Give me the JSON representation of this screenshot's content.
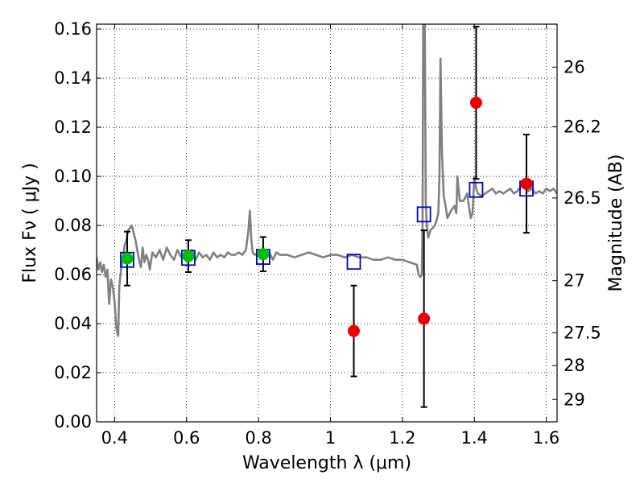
{
  "chart_data": {
    "type": "scatter",
    "title": "",
    "xlabel": "Wavelength  λ (μm)",
    "ylabel": "Flux  Fν  ( μJy )",
    "y2label": "Magnitude (AB)",
    "xlim": [
      0.35,
      1.63
    ],
    "ylim": [
      0.0,
      0.162
    ],
    "x_ticks": [
      0.4,
      0.6,
      0.8,
      1.0,
      1.2,
      1.4,
      1.6
    ],
    "x_tick_labels": [
      "0.4",
      "0.6",
      "0.8",
      "1",
      "1.2",
      "1.4",
      "1.6"
    ],
    "y_ticks": [
      0.0,
      0.02,
      0.04,
      0.06,
      0.08,
      0.1,
      0.12,
      0.14,
      0.16
    ],
    "y_tick_labels": [
      "0.00",
      "0.02",
      "0.04",
      "0.06",
      "0.08",
      "0.10",
      "0.12",
      "0.14",
      "0.16"
    ],
    "y2_ticks": [
      {
        "label": "26",
        "flux": 0.1445
      },
      {
        "label": "26.2",
        "flux": 0.1202
      },
      {
        "label": "26.5",
        "flux": 0.0912
      },
      {
        "label": "27",
        "flux": 0.0575
      },
      {
        "label": "27.5",
        "flux": 0.0363
      },
      {
        "label": "28",
        "flux": 0.0229
      },
      {
        "label": "29",
        "flux": 0.0091
      }
    ],
    "grid": true,
    "colors": {
      "template": "#808080",
      "model": "#0000cc",
      "detected": "#00c000",
      "weak": "#ee0000",
      "errorbar": "#000000"
    },
    "template_spectrum": {
      "x": [
        0.35,
        0.355,
        0.36,
        0.365,
        0.37,
        0.375,
        0.38,
        0.385,
        0.39,
        0.395,
        0.4,
        0.405,
        0.41,
        0.413,
        0.418,
        0.423,
        0.428,
        0.433,
        0.438,
        0.443,
        0.448,
        0.453,
        0.458,
        0.463,
        0.468,
        0.473,
        0.478,
        0.483,
        0.488,
        0.493,
        0.498,
        0.505,
        0.515,
        0.525,
        0.535,
        0.545,
        0.555,
        0.565,
        0.575,
        0.585,
        0.595,
        0.605,
        0.615,
        0.625,
        0.635,
        0.645,
        0.655,
        0.665,
        0.675,
        0.685,
        0.695,
        0.705,
        0.715,
        0.725,
        0.735,
        0.745,
        0.755,
        0.765,
        0.772,
        0.776,
        0.78,
        0.784,
        0.79,
        0.8,
        0.81,
        0.82,
        0.83,
        0.84,
        0.85,
        0.86,
        0.88,
        0.9,
        0.92,
        0.94,
        0.96,
        0.98,
        1.0,
        1.02,
        1.04,
        1.06,
        1.08,
        1.1,
        1.12,
        1.14,
        1.16,
        1.18,
        1.2,
        1.22,
        1.24,
        1.245,
        1.25,
        1.254,
        1.256,
        1.258,
        1.262,
        1.265,
        1.268,
        1.272,
        1.278,
        1.285,
        1.29,
        1.295,
        1.3,
        1.303,
        1.306,
        1.31,
        1.315,
        1.32,
        1.325,
        1.335,
        1.345,
        1.35,
        1.353,
        1.356,
        1.36,
        1.37,
        1.38,
        1.385,
        1.39,
        1.395,
        1.4,
        1.405,
        1.41,
        1.42,
        1.43,
        1.44,
        1.45,
        1.46,
        1.47,
        1.48,
        1.49,
        1.5,
        1.51,
        1.52,
        1.53,
        1.54,
        1.55,
        1.56,
        1.57,
        1.58,
        1.59,
        1.6,
        1.61,
        1.62,
        1.63
      ],
      "y": [
        0.067,
        0.062,
        0.065,
        0.061,
        0.064,
        0.059,
        0.062,
        0.048,
        0.058,
        0.055,
        0.049,
        0.038,
        0.035,
        0.055,
        0.062,
        0.066,
        0.072,
        0.074,
        0.078,
        0.079,
        0.08,
        0.077,
        0.074,
        0.07,
        0.066,
        0.063,
        0.071,
        0.065,
        0.068,
        0.066,
        0.062,
        0.069,
        0.067,
        0.07,
        0.066,
        0.071,
        0.068,
        0.066,
        0.07,
        0.067,
        0.069,
        0.068,
        0.07,
        0.066,
        0.069,
        0.067,
        0.068,
        0.066,
        0.069,
        0.067,
        0.068,
        0.067,
        0.069,
        0.068,
        0.068,
        0.069,
        0.068,
        0.07,
        0.078,
        0.086,
        0.074,
        0.069,
        0.068,
        0.069,
        0.068,
        0.067,
        0.069,
        0.066,
        0.069,
        0.068,
        0.068,
        0.067,
        0.068,
        0.069,
        0.068,
        0.067,
        0.068,
        0.068,
        0.067,
        0.068,
        0.067,
        0.067,
        0.066,
        0.066,
        0.067,
        0.066,
        0.066,
        0.065,
        0.064,
        0.06,
        0.059,
        0.06,
        0.08,
        0.17,
        0.17,
        0.09,
        0.08,
        0.075,
        0.078,
        0.079,
        0.08,
        0.082,
        0.085,
        0.1,
        0.148,
        0.11,
        0.092,
        0.088,
        0.083,
        0.086,
        0.088,
        0.085,
        0.1,
        0.095,
        0.09,
        0.09,
        0.093,
        0.088,
        0.083,
        0.085,
        0.1,
        0.095,
        0.093,
        0.092,
        0.093,
        0.094,
        0.095,
        0.093,
        0.094,
        0.093,
        0.094,
        0.095,
        0.093,
        0.094,
        0.096,
        0.095,
        0.094,
        0.095,
        0.093,
        0.094,
        0.093,
        0.095,
        0.094,
        0.095,
        0.093
      ]
    },
    "series": [
      {
        "name": "",
        "marker": "open-square",
        "color": "#0000cc",
        "points": [
          {
            "x": 0.435,
            "y": 0.066
          },
          {
            "x": 0.605,
            "y": 0.0668
          },
          {
            "x": 0.813,
            "y": 0.0672
          },
          {
            "x": 1.065,
            "y": 0.0652
          },
          {
            "x": 1.26,
            "y": 0.0845
          },
          {
            "x": 1.405,
            "y": 0.0945
          },
          {
            "x": 1.545,
            "y": 0.095
          }
        ]
      },
      {
        "name": "",
        "marker": "filled-circle",
        "color": "#00c000",
        "points": [
          {
            "x": 0.435,
            "y": 0.0665,
            "err": 0.011
          },
          {
            "x": 0.605,
            "y": 0.0675,
            "err": 0.0065
          },
          {
            "x": 0.813,
            "y": 0.0683,
            "err": 0.007
          }
        ]
      },
      {
        "name": "",
        "marker": "filled-circle",
        "color": "#ee0000",
        "points": [
          {
            "x": 1.065,
            "y": 0.037,
            "err": 0.0185
          },
          {
            "x": 1.26,
            "y": 0.042,
            "err": 0.036
          },
          {
            "x": 1.405,
            "y": 0.13,
            "err": 0.031
          },
          {
            "x": 1.545,
            "y": 0.097,
            "err": 0.02
          }
        ]
      }
    ]
  }
}
